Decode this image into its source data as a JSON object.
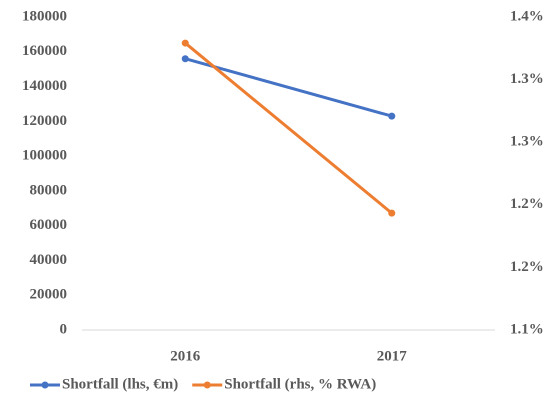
{
  "chart_data": {
    "type": "line",
    "categories": [
      "2016",
      "2017"
    ],
    "series": [
      {
        "name": "Shortfall (lhs, €m)",
        "color": "#4472c4",
        "values": [
          156000,
          123000
        ]
      },
      {
        "name": "Shortfall (rhs, % RWA)",
        "color": "#ed7d31",
        "values": [
          1.375,
          1.212
        ],
        "axis": "y2"
      }
    ],
    "ylim": [
      0,
      180000
    ],
    "yticks": [
      0,
      20000,
      40000,
      60000,
      80000,
      100000,
      120000,
      140000,
      160000,
      180000
    ],
    "y2lim": [
      1.1,
      1.4
    ],
    "y2ticks": [
      {
        "value": 1.1,
        "label": "1.1%"
      },
      {
        "value": 1.16,
        "label": "1.2%"
      },
      {
        "value": 1.22,
        "label": "1.2%"
      },
      {
        "value": 1.28,
        "label": "1.3%"
      },
      {
        "value": 1.34,
        "label": "1.3%"
      },
      {
        "value": 1.4,
        "label": "1.4%"
      }
    ],
    "grid": false,
    "legend": "bottom"
  }
}
